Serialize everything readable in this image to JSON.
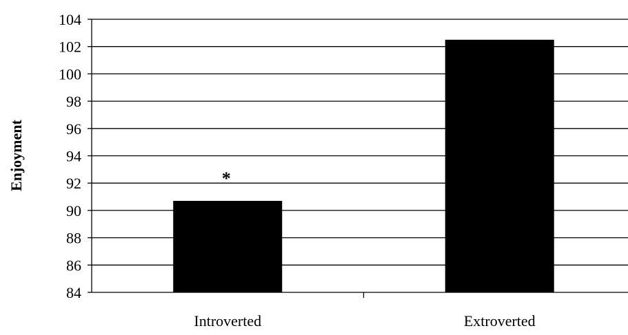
{
  "chart_data": {
    "type": "bar",
    "categories": [
      "Introverted",
      "Extroverted"
    ],
    "values": [
      90.7,
      102.5
    ],
    "title": "",
    "xlabel": "",
    "ylabel": "Enjoyment",
    "ylim": [
      84,
      104
    ],
    "yticks": [
      "84",
      "86",
      "88",
      "90",
      "92",
      "94",
      "96",
      "98",
      "100",
      "102",
      "104"
    ],
    "grid": true,
    "legend": "none",
    "bar_color": "#000000",
    "annotations": [
      {
        "category": "Introverted",
        "text": "*"
      }
    ]
  }
}
